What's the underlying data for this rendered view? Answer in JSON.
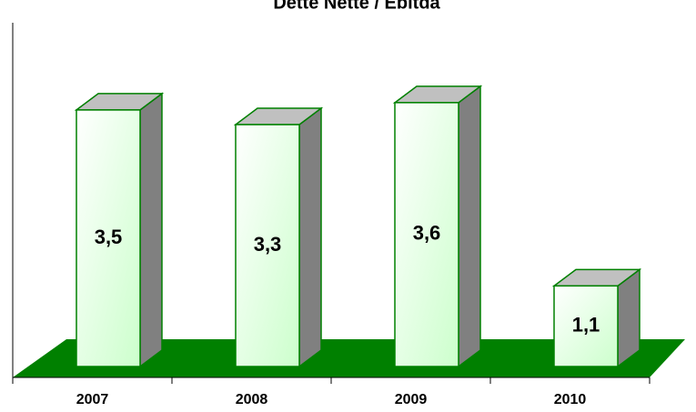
{
  "chart_data": {
    "type": "bar3d",
    "title": "Dette Nette / Ebitda",
    "categories": [
      "2007",
      "2008",
      "2009",
      "2010"
    ],
    "values": [
      3.5,
      3.3,
      3.6,
      1.1
    ],
    "value_labels": [
      "3,5",
      "3,3",
      "3,6",
      "1,1"
    ],
    "color": "#008000",
    "ylim": [
      0,
      5
    ]
  }
}
